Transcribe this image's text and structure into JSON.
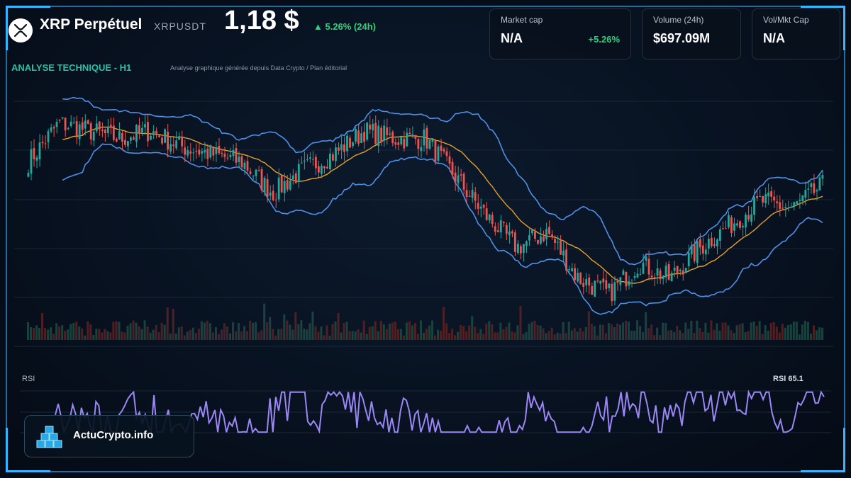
{
  "header": {
    "title": "XRP Perpétuel",
    "ticker": "XRPUSDT",
    "price": "1,18 $",
    "change": "▲ 5.26% (24h)"
  },
  "cards": [
    {
      "label": "Market cap",
      "value": "N/A",
      "sub": "+5.26%"
    },
    {
      "label": "Volume (24h)",
      "value": "$697.09M",
      "sub": ""
    },
    {
      "label": "Vol/Mkt Cap",
      "value": "N/A",
      "sub": ""
    }
  ],
  "analysis": {
    "title": "ANALYSE TECHNIQUE - H1",
    "subtitle": "Analyse graphique générée depuis Data Crypto / Plan éditorial"
  },
  "rsi": {
    "label": "RSI",
    "value_label": "RSI 65.1"
  },
  "brand": {
    "name": "ActuCrypto.info"
  },
  "colors": {
    "up": "#26a69a",
    "down": "#ef5350",
    "bollinger": "#4f8fe6",
    "ma": "#e5a026",
    "rsi": "#9b87f5",
    "accent": "#23c4a6",
    "positive": "#2fd27a"
  },
  "icons": {
    "logo": "xrp-logo-icon",
    "brand": "cubes-icon"
  },
  "chart_data": {
    "type": "candlestick",
    "timeframe": "H1",
    "close_anchors": [
      1.21,
      1.26,
      1.25,
      1.24,
      1.25,
      1.23,
      1.22,
      1.21,
      1.17,
      1.2,
      1.22,
      1.25,
      1.24,
      1.24,
      1.19,
      1.14,
      1.1,
      1.12,
      1.06,
      1.04,
      1.08,
      1.06,
      1.1,
      1.13,
      1.16,
      1.15,
      1.18
    ],
    "bollinger": true,
    "moving_average": true,
    "volume": true,
    "rsi": {
      "last": 65.1,
      "range": [
        0,
        100
      ]
    }
  }
}
